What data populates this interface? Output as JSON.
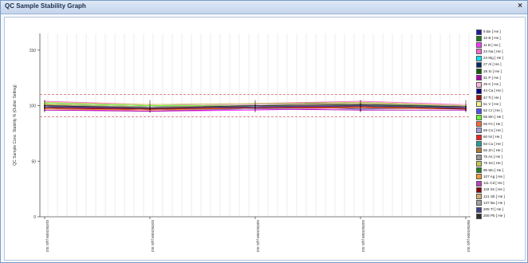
{
  "window": {
    "title": "QC Sample Stability Graph",
    "close_glyph": "×"
  },
  "chart_data": {
    "type": "line",
    "ylabel": "QC Sample Conc. Stability % (Outlier Setting)",
    "xlabel": "",
    "ylim": [
      0,
      165
    ],
    "yticks": [
      0,
      50,
      100,
      150
    ],
    "x_categories": [
      "01/05/2009 ppb Std",
      "02/05/2009 ppb Std",
      "03/05/2009 ppb Std",
      "04/05/2009 ppb Std",
      "05/05/2009 ppb Std"
    ],
    "limits": {
      "upper": 110,
      "lower": 90,
      "color": "#d04040"
    },
    "grid": "vertical",
    "series": [
      {
        "name": "9 Be [ He ]",
        "color": "#1a1aa8",
        "values": [
          98,
          96,
          99,
          97,
          98
        ]
      },
      {
        "name": "10 B [ He ]",
        "color": "#1f7a1f",
        "values": [
          101,
          99,
          100,
          102,
          100
        ]
      },
      {
        "name": "11 B [ He ]",
        "color": "#ff33ff",
        "values": [
          97,
          95,
          96,
          98,
          97
        ]
      },
      {
        "name": "23 Na [ He ]",
        "color": "#ff66cc",
        "values": [
          104,
          101,
          102,
          104,
          101
        ]
      },
      {
        "name": "24 Mg [ He ]",
        "color": "#00e5ff",
        "values": [
          99,
          98,
          100,
          99,
          99
        ]
      },
      {
        "name": "27 Al [ He ]",
        "color": "#002b6b",
        "values": [
          100,
          97,
          99,
          101,
          98
        ]
      },
      {
        "name": "28 Si [ He ]",
        "color": "#0b5e0b",
        "values": [
          102,
          100,
          101,
          103,
          100
        ]
      },
      {
        "name": "31 P [ He ]",
        "color": "#b000b0",
        "values": [
          96,
          95,
          97,
          96,
          96
        ]
      },
      {
        "name": "39 K [ He ]",
        "color": "#ffb3e6",
        "values": [
          103,
          100,
          101,
          102,
          101
        ]
      },
      {
        "name": "44 Ca [ He ]",
        "color": "#00008b",
        "values": [
          99,
          97,
          98,
          100,
          98
        ]
      },
      {
        "name": "47 Ti [ He ]",
        "color": "#a01010",
        "values": [
          98,
          96,
          97,
          99,
          97
        ]
      },
      {
        "name": "51 V [ He ]",
        "color": "#f2f28a",
        "values": [
          101,
          99,
          100,
          101,
          99
        ]
      },
      {
        "name": "52 Cr [ He ]",
        "color": "#4d4dff",
        "values": [
          100,
          98,
          99,
          100,
          99
        ]
      },
      {
        "name": "55 Mn [ He ]",
        "color": "#66ff33",
        "values": [
          102,
          100,
          100,
          102,
          100
        ]
      },
      {
        "name": "56 Fe [ He ]",
        "color": "#ff6633",
        "values": [
          99,
          97,
          99,
          100,
          98
        ]
      },
      {
        "name": "59 Co [ He ]",
        "color": "#9f9fdf",
        "values": [
          97,
          96,
          97,
          98,
          97
        ]
      },
      {
        "name": "60 Ni [ He ]",
        "color": "#ff2020",
        "values": [
          101,
          98,
          99,
          101,
          99
        ]
      },
      {
        "name": "63 Cu [ He ]",
        "color": "#20a0a0",
        "values": [
          100,
          99,
          100,
          101,
          100
        ]
      },
      {
        "name": "66 Zn [ He ]",
        "color": "#b07a30",
        "values": [
          98,
          97,
          98,
          99,
          98
        ]
      },
      {
        "name": "75 As [ He ]",
        "color": "#999999",
        "values": [
          99,
          98,
          99,
          100,
          99
        ]
      },
      {
        "name": "78 Se [ He ]",
        "color": "#c8c850",
        "values": [
          103,
          101,
          102,
          103,
          100
        ]
      },
      {
        "name": "95 Mo [ He ]",
        "color": "#208020",
        "values": [
          100,
          99,
          100,
          100,
          99
        ]
      },
      {
        "name": "107 Ag [ He ]",
        "color": "#ff9933",
        "values": [
          97,
          96,
          98,
          98,
          97
        ]
      },
      {
        "name": "111 Cd [ He ]",
        "color": "#c040c0",
        "values": [
          99,
          97,
          98,
          100,
          98
        ]
      },
      {
        "name": "118 Sn [ He ]",
        "color": "#8b0000",
        "values": [
          98,
          97,
          98,
          99,
          97
        ]
      },
      {
        "name": "121 Sb [ He ]",
        "color": "#d4b070",
        "values": [
          101,
          99,
          100,
          102,
          100
        ]
      },
      {
        "name": "137 Ba [ He ]",
        "color": "#a0a0a0",
        "values": [
          100,
          99,
          99,
          101,
          99
        ]
      },
      {
        "name": "205 Tl [ He ]",
        "color": "#404090",
        "values": [
          99,
          98,
          99,
          100,
          98
        ]
      },
      {
        "name": "208 Pb [ He ]",
        "color": "#303030",
        "values": [
          100,
          98,
          100,
          101,
          99
        ]
      }
    ]
  }
}
